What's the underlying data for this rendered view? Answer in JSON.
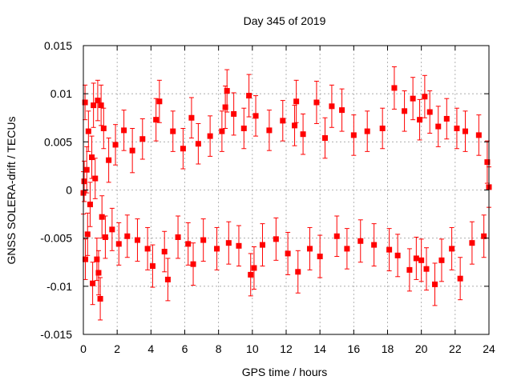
{
  "chart_data": {
    "type": "scatter",
    "title": "Day 345 of 2019",
    "xlabel": "GPS time / hours",
    "ylabel": "GNSS SOLERA-drift / TECUs",
    "xlim": [
      0,
      24
    ],
    "ylim": [
      -0.015,
      0.015
    ],
    "x_ticks": [
      0,
      2,
      4,
      6,
      8,
      10,
      12,
      14,
      16,
      18,
      20,
      22,
      24
    ],
    "x_tick_labels": [
      "0",
      "2",
      "4",
      "6",
      "8",
      "10",
      "12",
      "14",
      "16",
      "18",
      "20",
      "22",
      "24"
    ],
    "y_ticks": [
      -0.015,
      -0.01,
      -0.005,
      0,
      0.005,
      0.01,
      0.015
    ],
    "y_tick_labels": [
      "-0.015",
      "-0.01",
      "-0.005",
      "0",
      "0.005",
      "0.01",
      "0.015"
    ],
    "grid": true,
    "series": [
      {
        "color": "#ff0000",
        "marker": "square",
        "error_bars": true,
        "points": [
          {
            "x": 0.0,
            "y": -0.0003,
            "err": 0.0022
          },
          {
            "x": 0.05,
            "y": 0.0009,
            "err": 0.0021
          },
          {
            "x": 0.1,
            "y": 0.0091,
            "err": 0.0018
          },
          {
            "x": 0.12,
            "y": -0.0072,
            "err": 0.0021
          },
          {
            "x": 0.2,
            "y": 0.0021,
            "err": 0.0024
          },
          {
            "x": 0.25,
            "y": -0.0046,
            "err": 0.0022
          },
          {
            "x": 0.3,
            "y": 0.0061,
            "err": 0.0021
          },
          {
            "x": 0.4,
            "y": -0.0015,
            "err": 0.0023
          },
          {
            "x": 0.5,
            "y": 0.0034,
            "err": 0.0022
          },
          {
            "x": 0.55,
            "y": -0.0097,
            "err": 0.0022
          },
          {
            "x": 0.6,
            "y": 0.0088,
            "err": 0.0023
          },
          {
            "x": 0.7,
            "y": 0.0012,
            "err": 0.0021
          },
          {
            "x": 0.8,
            "y": -0.0072,
            "err": 0.0022
          },
          {
            "x": 0.85,
            "y": 0.0093,
            "err": 0.0021
          },
          {
            "x": 0.9,
            "y": -0.0086,
            "err": 0.0023
          },
          {
            "x": 1.0,
            "y": -0.0113,
            "err": 0.0022
          },
          {
            "x": 1.05,
            "y": 0.0088,
            "err": 0.0021
          },
          {
            "x": 1.1,
            "y": -0.0028,
            "err": 0.0022
          },
          {
            "x": 1.2,
            "y": 0.0064,
            "err": 0.0021
          },
          {
            "x": 1.3,
            "y": -0.0049,
            "err": 0.0022
          },
          {
            "x": 1.5,
            "y": 0.0031,
            "err": 0.0023
          },
          {
            "x": 1.7,
            "y": -0.0041,
            "err": 0.0022
          },
          {
            "x": 1.9,
            "y": 0.0047,
            "err": 0.0021
          },
          {
            "x": 2.1,
            "y": -0.0056,
            "err": 0.0022
          },
          {
            "x": 2.4,
            "y": 0.0062,
            "err": 0.0021
          },
          {
            "x": 2.6,
            "y": -0.0048,
            "err": 0.0022
          },
          {
            "x": 2.9,
            "y": 0.0041,
            "err": 0.0023
          },
          {
            "x": 3.2,
            "y": -0.0052,
            "err": 0.0022
          },
          {
            "x": 3.5,
            "y": 0.0053,
            "err": 0.0021
          },
          {
            "x": 3.8,
            "y": -0.0061,
            "err": 0.0022
          },
          {
            "x": 4.1,
            "y": -0.0079,
            "err": 0.0022
          },
          {
            "x": 4.3,
            "y": 0.0073,
            "err": 0.0022
          },
          {
            "x": 4.5,
            "y": 0.0092,
            "err": 0.0022
          },
          {
            "x": 4.8,
            "y": -0.0064,
            "err": 0.0021
          },
          {
            "x": 5.0,
            "y": -0.0093,
            "err": 0.0022
          },
          {
            "x": 5.3,
            "y": 0.0061,
            "err": 0.0021
          },
          {
            "x": 5.6,
            "y": -0.0049,
            "err": 0.0022
          },
          {
            "x": 5.9,
            "y": 0.0043,
            "err": 0.0021
          },
          {
            "x": 6.2,
            "y": -0.0056,
            "err": 0.0022
          },
          {
            "x": 6.4,
            "y": 0.0075,
            "err": 0.0021
          },
          {
            "x": 6.5,
            "y": -0.0077,
            "err": 0.0022
          },
          {
            "x": 6.8,
            "y": 0.0048,
            "err": 0.0021
          },
          {
            "x": 7.1,
            "y": -0.0052,
            "err": 0.0022
          },
          {
            "x": 7.5,
            "y": 0.0056,
            "err": 0.0021
          },
          {
            "x": 7.9,
            "y": -0.0061,
            "err": 0.0022
          },
          {
            "x": 8.2,
            "y": 0.0061,
            "err": 0.0021
          },
          {
            "x": 8.4,
            "y": 0.0086,
            "err": 0.0022
          },
          {
            "x": 8.5,
            "y": 0.0103,
            "err": 0.0022
          },
          {
            "x": 8.6,
            "y": -0.0055,
            "err": 0.0022
          },
          {
            "x": 8.9,
            "y": 0.0079,
            "err": 0.0022
          },
          {
            "x": 9.2,
            "y": -0.0058,
            "err": 0.0021
          },
          {
            "x": 9.5,
            "y": 0.0064,
            "err": 0.0021
          },
          {
            "x": 9.8,
            "y": 0.0098,
            "err": 0.0022
          },
          {
            "x": 9.9,
            "y": -0.0088,
            "err": 0.0022
          },
          {
            "x": 10.1,
            "y": -0.0081,
            "err": 0.0022
          },
          {
            "x": 10.2,
            "y": 0.0077,
            "err": 0.0021
          },
          {
            "x": 10.6,
            "y": -0.0057,
            "err": 0.0022
          },
          {
            "x": 11.0,
            "y": 0.0062,
            "err": 0.0021
          },
          {
            "x": 11.4,
            "y": -0.0051,
            "err": 0.0022
          },
          {
            "x": 11.8,
            "y": 0.0072,
            "err": 0.0021
          },
          {
            "x": 12.1,
            "y": -0.0066,
            "err": 0.0022
          },
          {
            "x": 12.5,
            "y": 0.0067,
            "err": 0.0021
          },
          {
            "x": 12.6,
            "y": 0.0092,
            "err": 0.0022
          },
          {
            "x": 12.7,
            "y": -0.0085,
            "err": 0.0022
          },
          {
            "x": 13.0,
            "y": 0.0058,
            "err": 0.0021
          },
          {
            "x": 13.4,
            "y": -0.0061,
            "err": 0.0022
          },
          {
            "x": 13.8,
            "y": 0.0091,
            "err": 0.0022
          },
          {
            "x": 14.0,
            "y": -0.0069,
            "err": 0.0022
          },
          {
            "x": 14.3,
            "y": 0.0054,
            "err": 0.0021
          },
          {
            "x": 14.7,
            "y": 0.0087,
            "err": 0.0022
          },
          {
            "x": 15.0,
            "y": -0.0048,
            "err": 0.0021
          },
          {
            "x": 15.3,
            "y": 0.0083,
            "err": 0.0022
          },
          {
            "x": 15.6,
            "y": -0.0061,
            "err": 0.0021
          },
          {
            "x": 16.0,
            "y": 0.0057,
            "err": 0.0021
          },
          {
            "x": 16.4,
            "y": -0.0053,
            "err": 0.0022
          },
          {
            "x": 16.8,
            "y": 0.0061,
            "err": 0.0021
          },
          {
            "x": 17.2,
            "y": -0.0057,
            "err": 0.0022
          },
          {
            "x": 17.7,
            "y": 0.0064,
            "err": 0.0021
          },
          {
            "x": 18.1,
            "y": -0.0062,
            "err": 0.0022
          },
          {
            "x": 18.4,
            "y": 0.0106,
            "err": 0.0022
          },
          {
            "x": 18.6,
            "y": -0.0068,
            "err": 0.0022
          },
          {
            "x": 19.0,
            "y": 0.0082,
            "err": 0.0021
          },
          {
            "x": 19.3,
            "y": -0.0083,
            "err": 0.0022
          },
          {
            "x": 19.5,
            "y": 0.0095,
            "err": 0.0022
          },
          {
            "x": 19.7,
            "y": -0.0071,
            "err": 0.0022
          },
          {
            "x": 19.9,
            "y": 0.0073,
            "err": 0.0021
          },
          {
            "x": 20.0,
            "y": -0.0073,
            "err": 0.0022
          },
          {
            "x": 20.2,
            "y": 0.0097,
            "err": 0.0022
          },
          {
            "x": 20.3,
            "y": -0.0082,
            "err": 0.0022
          },
          {
            "x": 20.5,
            "y": 0.0081,
            "err": 0.0022
          },
          {
            "x": 20.8,
            "y": -0.0098,
            "err": 0.0022
          },
          {
            "x": 21.0,
            "y": 0.0066,
            "err": 0.0021
          },
          {
            "x": 21.2,
            "y": -0.0073,
            "err": 0.0022
          },
          {
            "x": 21.5,
            "y": 0.0074,
            "err": 0.0021
          },
          {
            "x": 21.8,
            "y": -0.0061,
            "err": 0.0022
          },
          {
            "x": 22.1,
            "y": 0.0064,
            "err": 0.0021
          },
          {
            "x": 22.3,
            "y": -0.0092,
            "err": 0.0022
          },
          {
            "x": 22.6,
            "y": 0.0061,
            "err": 0.0021
          },
          {
            "x": 23.0,
            "y": -0.0055,
            "err": 0.0022
          },
          {
            "x": 23.4,
            "y": 0.0057,
            "err": 0.0021
          },
          {
            "x": 23.7,
            "y": -0.0048,
            "err": 0.0022
          },
          {
            "x": 23.9,
            "y": 0.0029,
            "err": 0.0022
          },
          {
            "x": 24.0,
            "y": 0.0003,
            "err": 0.0021
          }
        ]
      }
    ]
  }
}
